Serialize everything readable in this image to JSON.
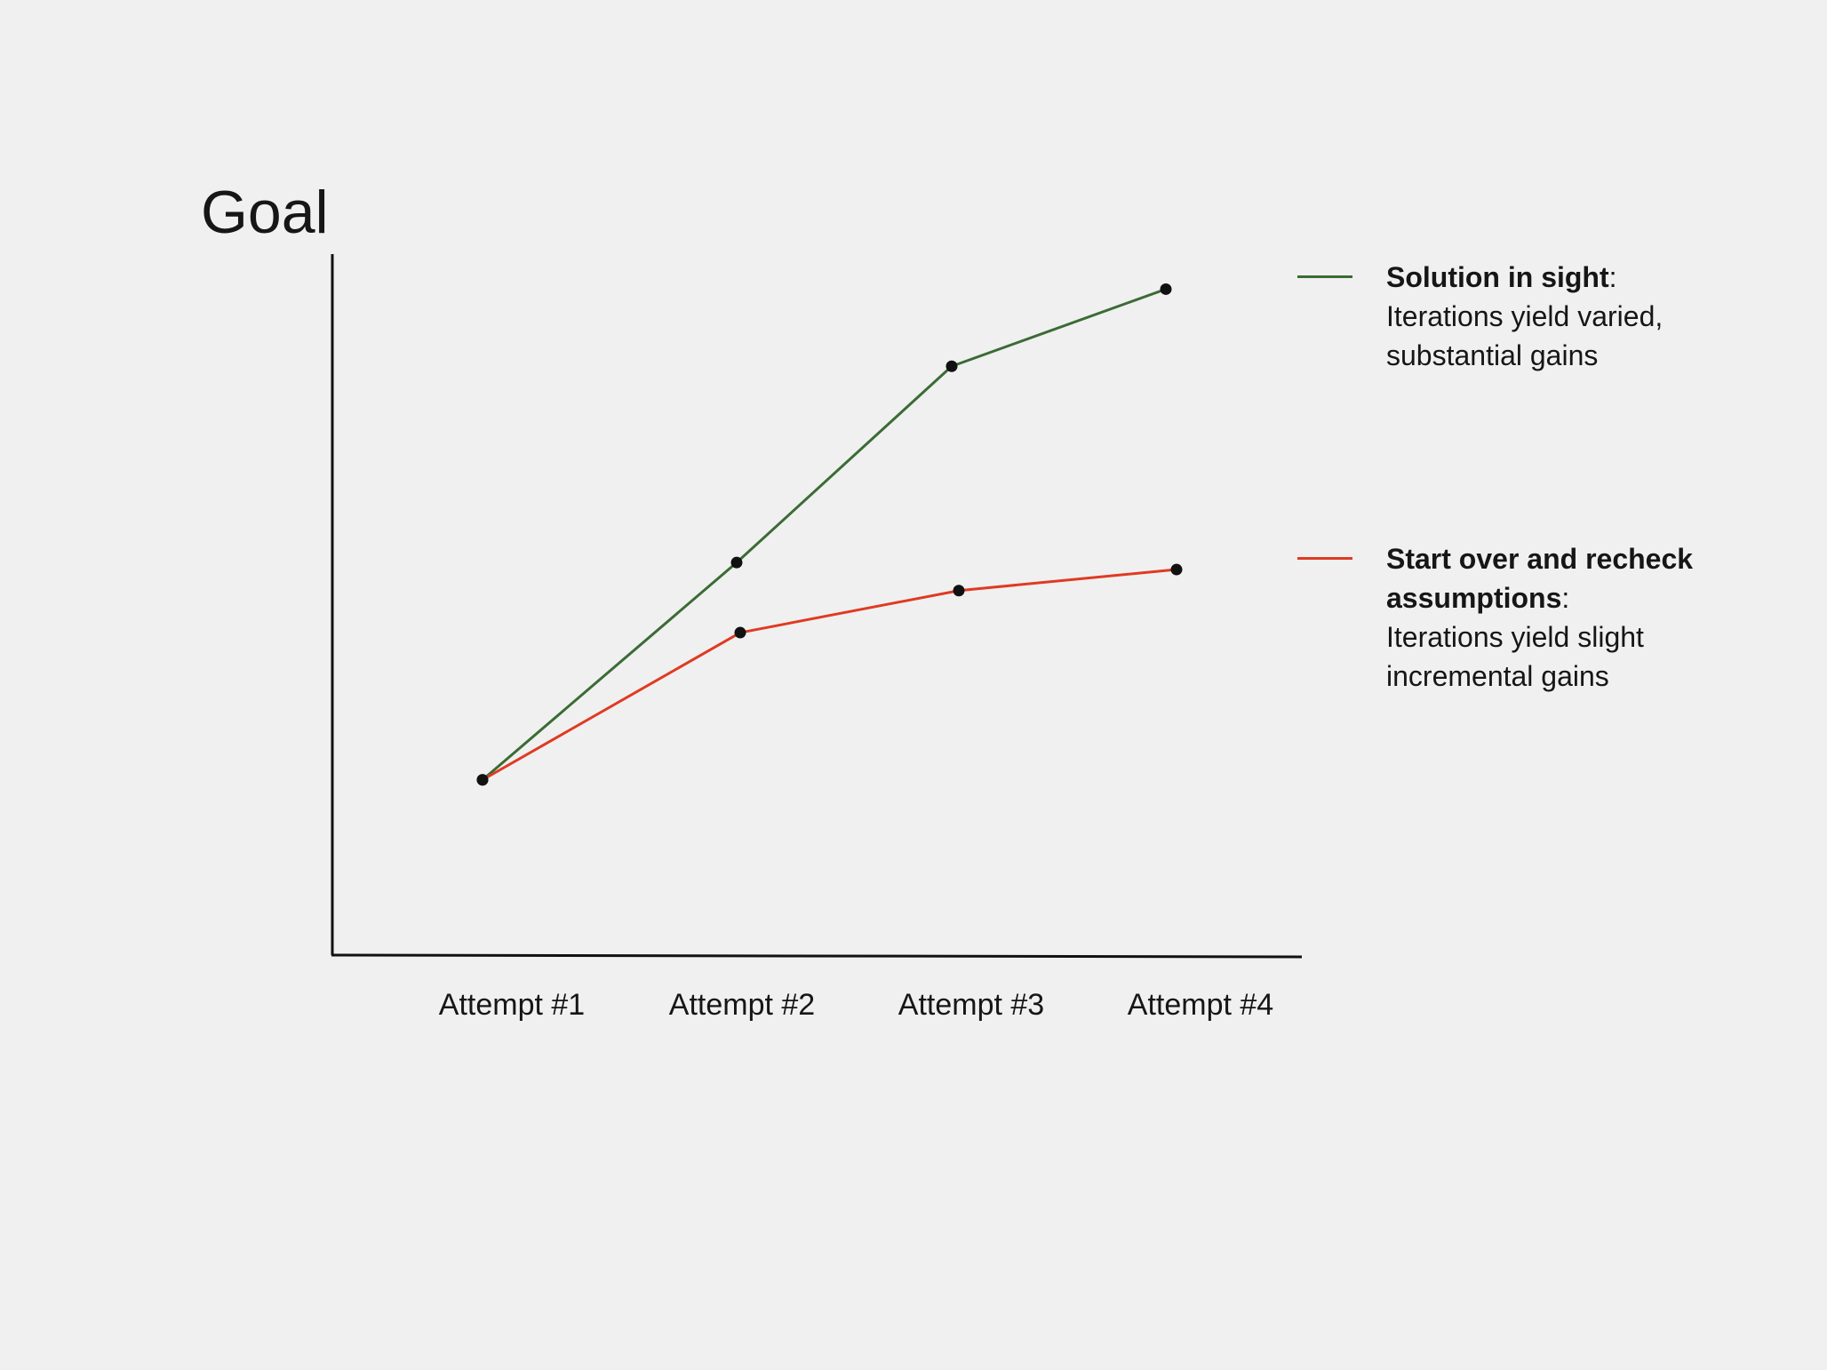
{
  "chart_data": {
    "type": "line",
    "title": "",
    "ylabel": "Goal",
    "xlabel": "",
    "categories": [
      "Attempt #1",
      "Attempt #2",
      "Attempt #3",
      "Attempt #4"
    ],
    "y_ticks_shown": false,
    "grid": false,
    "ylim": [
      0,
      100
    ],
    "legend_position": "right",
    "series": [
      {
        "name": "Solution in sight",
        "description": "Iterations yield varied, substantial gains",
        "color": "#3b6b35",
        "values": [
          25,
          56,
          84,
          95
        ]
      },
      {
        "name": "Start over and recheck assumptions",
        "description": "Iterations yield slight incremental gains",
        "color": "#e03a22",
        "values": [
          25,
          46,
          52,
          55
        ]
      }
    ],
    "colors": {
      "axis": "#111111",
      "point": "#111111",
      "background": "#f0f0f0"
    }
  }
}
